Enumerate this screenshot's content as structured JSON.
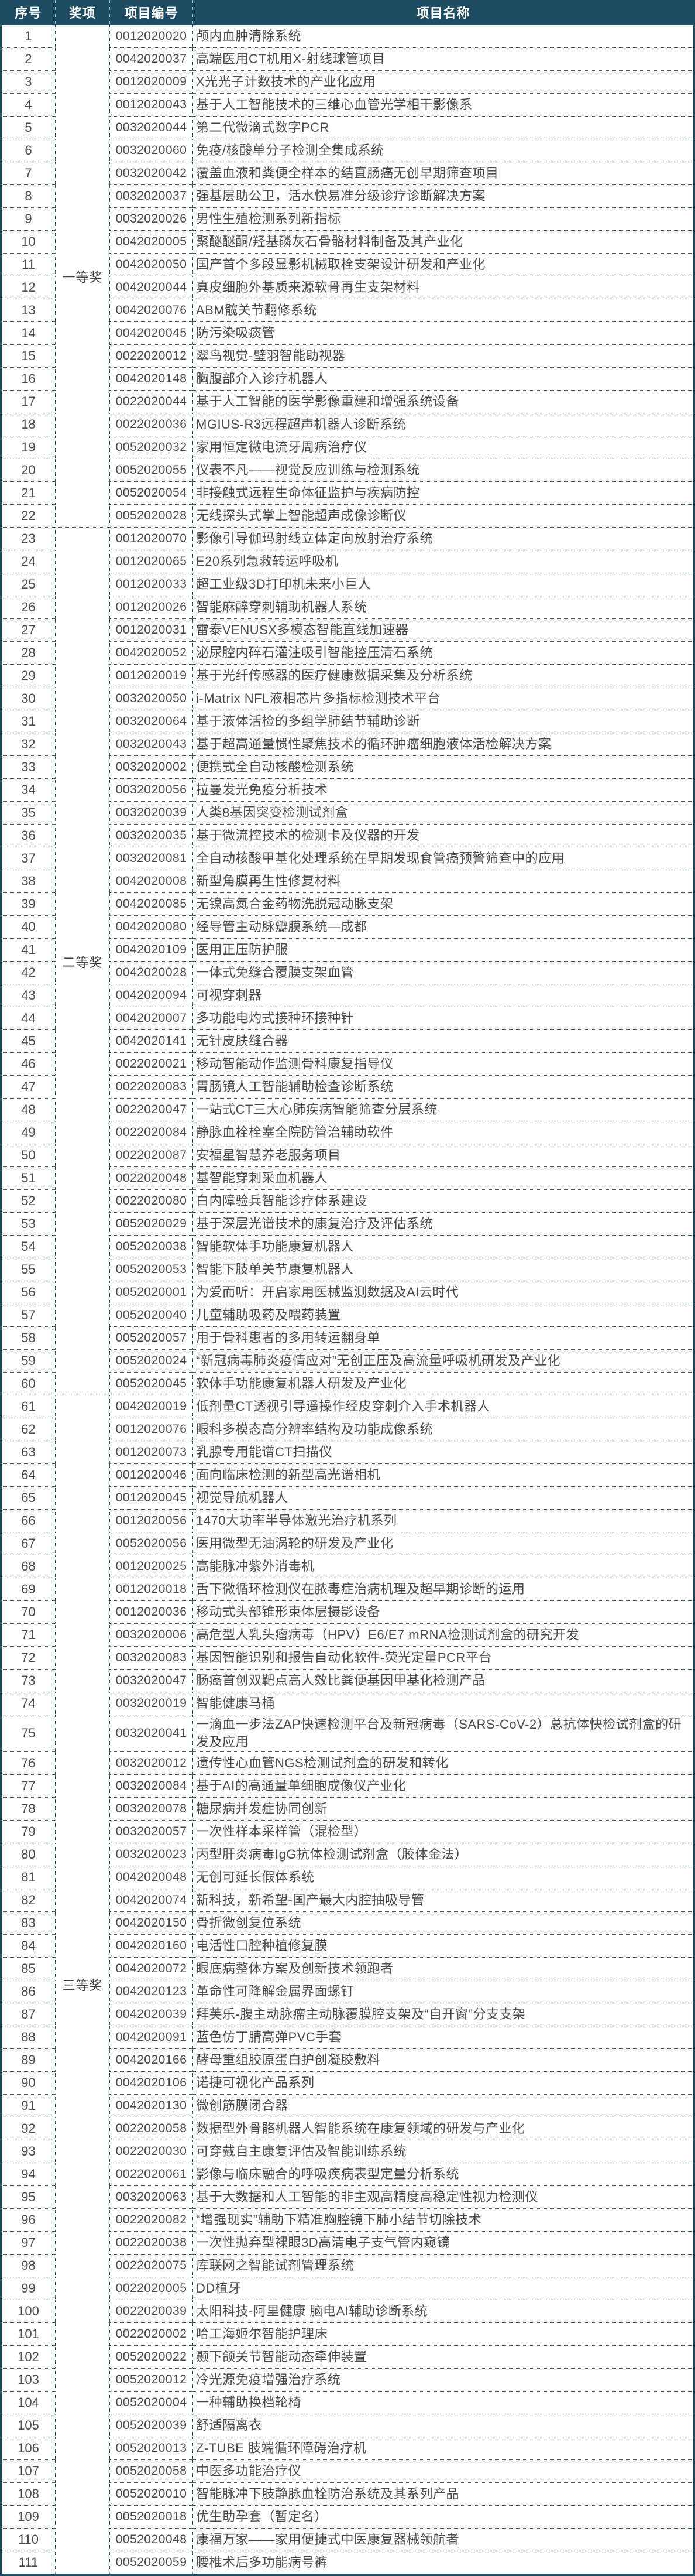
{
  "colors": {
    "header_bg": "#1e4d63",
    "header_text": "#ffffff",
    "grid_dotted": "#2e6486",
    "body_text": "#4a4a4a",
    "outer_border": "#1e4d63"
  },
  "table": {
    "columns": [
      "序号",
      "奖项",
      "项目编号",
      "项目名称"
    ],
    "groups": [
      {
        "award": "一等奖",
        "rows": [
          {
            "no": "1",
            "code": "0012020020",
            "name": "颅内血肿清除系统"
          },
          {
            "no": "2",
            "code": "0042020037",
            "name": "高端医用CT机用X-射线球管项目"
          },
          {
            "no": "3",
            "code": "0012020009",
            "name": "X光光子计数技术的产业化应用"
          },
          {
            "no": "4",
            "code": "0012020043",
            "name": "基于人工智能技术的三维心血管光学相干影像系"
          },
          {
            "no": "5",
            "code": "0032020044",
            "name": "第二代微滴式数字PCR"
          },
          {
            "no": "6",
            "code": "0032020060",
            "name": "免疫/核酸单分子检测全集成系统"
          },
          {
            "no": "7",
            "code": "0032020042",
            "name": "覆盖血液和粪便全样本的结直肠癌无创早期筛查项目"
          },
          {
            "no": "8",
            "code": "0032020037",
            "name": "强基层助公卫，活水快易准分级诊疗诊断解决方案"
          },
          {
            "no": "9",
            "code": "0032020026",
            "name": "男性生殖检测系列新指标"
          },
          {
            "no": "10",
            "code": "0042020005",
            "name": "聚醚醚酮/羟基磷灰石骨骼材料制备及其产业化"
          },
          {
            "no": "11",
            "code": "0042020050",
            "name": "国产首个多段显影机械取栓支架设计研发和产业化"
          },
          {
            "no": "12",
            "code": "0042020044",
            "name": "真皮细胞外基质来源软骨再生支架材料"
          },
          {
            "no": "13",
            "code": "0042020076",
            "name": "ABM髋关节翻修系统"
          },
          {
            "no": "14",
            "code": "0042020045",
            "name": "防污染吸痰管"
          },
          {
            "no": "15",
            "code": "0022020012",
            "name": "翠鸟视觉-璧羽智能助视器"
          },
          {
            "no": "16",
            "code": "0042020148",
            "name": "胸腹部介入诊疗机器人"
          },
          {
            "no": "17",
            "code": "0022020044",
            "name": "基于人工智能的医学影像重建和增强系统设备"
          },
          {
            "no": "18",
            "code": "0022020036",
            "name": "MGIUS-R3远程超声机器人诊断系统"
          },
          {
            "no": "19",
            "code": "0052020032",
            "name": "家用恒定微电流牙周病治疗仪"
          },
          {
            "no": "20",
            "code": "0052020055",
            "name": "仪表不凡——视觉反应训练与检测系统"
          },
          {
            "no": "21",
            "code": "0052020054",
            "name": "非接触式远程生命体征监护与疾病防控"
          },
          {
            "no": "22",
            "code": "0052020028",
            "name": "无线探头式掌上智能超声成像诊断仪"
          }
        ]
      },
      {
        "award": "二等奖",
        "rows": [
          {
            "no": "23",
            "code": "0012020070",
            "name": "影像引导伽玛射线立体定向放射治疗系统"
          },
          {
            "no": "24",
            "code": "0012020065",
            "name": "E20系列急救转运呼吸机"
          },
          {
            "no": "25",
            "code": "0012020033",
            "name": "超工业级3D打印机未来小巨人"
          },
          {
            "no": "26",
            "code": "0012020026",
            "name": "智能麻醉穿刺辅助机器人系统"
          },
          {
            "no": "27",
            "code": "0012020031",
            "name": "雷泰VENUSX多模态智能直线加速器"
          },
          {
            "no": "28",
            "code": "0042020052",
            "name": "泌尿腔内碎石灌注吸引智能控压清石系统"
          },
          {
            "no": "29",
            "code": "0012020019",
            "name": "基于光纤传感器的医疗健康数据采集及分析系统"
          },
          {
            "no": "30",
            "code": "0032020050",
            "name": "i-Matrix NFL液相芯片多指标检测技术平台"
          },
          {
            "no": "31",
            "code": "0032020064",
            "name": "基于液体活检的多组学肺结节辅助诊断"
          },
          {
            "no": "32",
            "code": "0032020043",
            "name": "基于超高通量惯性聚焦技术的循环肿瘤细胞液体活检解决方案"
          },
          {
            "no": "33",
            "code": "0032020002",
            "name": "便携式全自动核酸检测系统"
          },
          {
            "no": "34",
            "code": "0032020056",
            "name": "拉曼发光免疫分析技术"
          },
          {
            "no": "35",
            "code": "0032020039",
            "name": "人类8基因突变检测试剂盒"
          },
          {
            "no": "36",
            "code": "0032020035",
            "name": "基于微流控技术的检测卡及仪器的开发"
          },
          {
            "no": "37",
            "code": "0032020081",
            "name": "全自动核酸甲基化处理系统在早期发现食管癌预警筛查中的应用"
          },
          {
            "no": "38",
            "code": "0042020008",
            "name": "新型角膜再生性修复材料"
          },
          {
            "no": "39",
            "code": "0042020085",
            "name": "无镍高氮合金药物洗脱冠动脉支架"
          },
          {
            "no": "40",
            "code": "0042020080",
            "name": "经导管主动脉瓣膜系统—成都"
          },
          {
            "no": "41",
            "code": "0042020109",
            "name": "医用正压防护服"
          },
          {
            "no": "42",
            "code": "0042020028",
            "name": "一体式免缝合覆膜支架血管"
          },
          {
            "no": "43",
            "code": "0042020094",
            "name": "可视穿刺器"
          },
          {
            "no": "44",
            "code": "0042020007",
            "name": "多功能电灼式接种环接种针"
          },
          {
            "no": "45",
            "code": "0042020141",
            "name": "无针皮肤缝合器"
          },
          {
            "no": "46",
            "code": "0022020021",
            "name": "移动智能动作监测骨科康复指导仪"
          },
          {
            "no": "47",
            "code": "0022020083",
            "name": "胃肠镜人工智能辅助检查诊断系统"
          },
          {
            "no": "48",
            "code": "0022020047",
            "name": "一站式CT三大心肺疾病智能筛查分层系统"
          },
          {
            "no": "49",
            "code": "0022020084",
            "name": "静脉血栓栓塞全院防管治辅助软件"
          },
          {
            "no": "50",
            "code": "0022020087",
            "name": "安福星智慧养老服务项目"
          },
          {
            "no": "51",
            "code": "0022020048",
            "name": "基智能穿刺采血机器人"
          },
          {
            "no": "52",
            "code": "0022020080",
            "name": "白内障验兵智能诊疗体系建设"
          },
          {
            "no": "53",
            "code": "0052020029",
            "name": "基于深层光谱技术的康复治疗及评估系统"
          },
          {
            "no": "54",
            "code": "0052020038",
            "name": "智能软体手功能康复机器人"
          },
          {
            "no": "55",
            "code": "0052020053",
            "name": "智能下肢单关节康复机器人"
          },
          {
            "no": "56",
            "code": "0052020001",
            "name": "为爱而听：开启家用医械监测数据及AI云时代"
          },
          {
            "no": "57",
            "code": "0052020040",
            "name": "儿童辅助吸药及喂药装置"
          },
          {
            "no": "58",
            "code": "0052020057",
            "name": "用于骨科患者的多用转运翻身单"
          },
          {
            "no": "59",
            "code": "0052020024",
            "name": "“新冠病毒肺炎疫情应对”无创正压及高流量呼吸机研发及产业化"
          },
          {
            "no": "60",
            "code": "0052020045",
            "name": "软体手功能康复机器人研发及产业化"
          }
        ]
      },
      {
        "award": "三等奖",
        "rows": [
          {
            "no": "61",
            "code": "0042020019",
            "name": "低剂量CT透视引导遥操作经皮穿刺介入手术机器人"
          },
          {
            "no": "62",
            "code": "0012020076",
            "name": "眼科多模态高分辨率结构及功能成像系统"
          },
          {
            "no": "63",
            "code": "0012020073",
            "name": "乳腺专用能谱CT扫描仪"
          },
          {
            "no": "64",
            "code": "0012020046",
            "name": "面向临床检测的新型高光谱相机"
          },
          {
            "no": "65",
            "code": "0012020045",
            "name": "视觉导航机器人"
          },
          {
            "no": "66",
            "code": "0012020056",
            "name": "1470大功率半导体激光治疗机系列"
          },
          {
            "no": "67",
            "code": "0052020056",
            "name": "医用微型无油涡轮的研发及产业化"
          },
          {
            "no": "68",
            "code": "0012020025",
            "name": "高能脉冲紫外消毒机"
          },
          {
            "no": "69",
            "code": "0012020018",
            "name": "舌下微循环检测仪在脓毒症治病机理及超早期诊断的运用"
          },
          {
            "no": "70",
            "code": "0012020036",
            "name": "移动式头部锥形束体层摄影设备"
          },
          {
            "no": "71",
            "code": "0032020006",
            "name": "高危型人乳头瘤病毒（HPV）E6/E7 mRNA检测试剂盒的研究开发"
          },
          {
            "no": "72",
            "code": "0032020083",
            "name": "基因智能识别和报告自动化软件-荧光定量PCR平台"
          },
          {
            "no": "73",
            "code": "0032020047",
            "name": "肠癌首创双靶点高人效比粪便基因甲基化检测产品"
          },
          {
            "no": "74",
            "code": "0032020019",
            "name": "智能健康马桶"
          },
          {
            "no": "75",
            "code": "0032020041",
            "name": "一滴血一步法ZAP快速检测平台及新冠病毒（SARS-CoV-2）总抗体快检试剂盒的研发及应用"
          },
          {
            "no": "76",
            "code": "0032020012",
            "name": "遗传性心血管NGS检测试剂盒的研发和转化"
          },
          {
            "no": "77",
            "code": "0032020084",
            "name": "基于AI的高通量单细胞成像仪产业化"
          },
          {
            "no": "78",
            "code": "0032020078",
            "name": "糖尿病并发症协同创新"
          },
          {
            "no": "79",
            "code": "0032020057",
            "name": "一次性样本采样管（混检型）"
          },
          {
            "no": "80",
            "code": "0032020023",
            "name": "丙型肝炎病毒IgG抗体检测试剂盒（胶体金法）"
          },
          {
            "no": "81",
            "code": "0042020048",
            "name": "无创可延长假体系统"
          },
          {
            "no": "82",
            "code": "0042020074",
            "name": "新科技，新希望-国产最大内腔抽吸导管"
          },
          {
            "no": "83",
            "code": "0042020150",
            "name": "骨折微创复位系统"
          },
          {
            "no": "84",
            "code": "0042020160",
            "name": "电活性口腔种植修复膜"
          },
          {
            "no": "85",
            "code": "0042020072",
            "name": "眼底病整体方案及创新技术领跑者"
          },
          {
            "no": "86",
            "code": "0042020123",
            "name": "革命性可降解金属界面螺钉"
          },
          {
            "no": "87",
            "code": "0042020039",
            "name": "拜芙乐-腹主动脉瘤主动脉覆膜腔支架及“自开窗”分支支架"
          },
          {
            "no": "88",
            "code": "0042020091",
            "name": "蓝色仿丁腈高弹PVC手套"
          },
          {
            "no": "89",
            "code": "0042020166",
            "name": "酵母重组胶原蛋白护创凝胶敷料"
          },
          {
            "no": "90",
            "code": "0042020106",
            "name": "诺捷可视化产品系列"
          },
          {
            "no": "91",
            "code": "0042020130",
            "name": "微创筋膜闭合器"
          },
          {
            "no": "92",
            "code": "0022020058",
            "name": "数据型外骨骼机器人智能系统在康复领域的研发与产业化"
          },
          {
            "no": "93",
            "code": "0022020030",
            "name": "可穿戴自主康复评估及智能训练系统"
          },
          {
            "no": "94",
            "code": "0022020061",
            "name": "影像与临床融合的呼吸疾病表型定量分析系统"
          },
          {
            "no": "95",
            "code": "0032020063",
            "name": "基于大数据和人工智能的非主观高精度高稳定性视力检测仪"
          },
          {
            "no": "96",
            "code": "0022020082",
            "name": "“增强现实”辅助下精准胸腔镜下肺小结节切除技术"
          },
          {
            "no": "97",
            "code": "0022020038",
            "name": "一次性抛弃型裸眼3D高清电子支气管内窥镜"
          },
          {
            "no": "98",
            "code": "0022020075",
            "name": "库联网之智能试剂管理系统"
          },
          {
            "no": "99",
            "code": "0022020005",
            "name": "DD植牙"
          },
          {
            "no": "100",
            "code": "0022020039",
            "name": "太阳科技-阿里健康 脑电AI辅助诊断系统"
          },
          {
            "no": "101",
            "code": "0022020002",
            "name": "哈工海姬尔智能护理床"
          },
          {
            "no": "102",
            "code": "0052020022",
            "name": "颞下颌关节智能动态牵伸装置"
          },
          {
            "no": "103",
            "code": "0052020012",
            "name": "冷光源免疫增强治疗系统"
          },
          {
            "no": "104",
            "code": "0052020004",
            "name": "一种辅助换档轮椅"
          },
          {
            "no": "105",
            "code": "0052020039",
            "name": "舒适隔离衣"
          },
          {
            "no": "106",
            "code": "0052020013",
            "name": "Z-TUBE 肢端循环障碍治疗机"
          },
          {
            "no": "107",
            "code": "0052020058",
            "name": "中医多功能治疗仪"
          },
          {
            "no": "108",
            "code": "0052020010",
            "name": "智能脉冲下肢静脉血栓防治系统及其系列产品"
          },
          {
            "no": "109",
            "code": "0052020018",
            "name": "优生助孕套（暂定名）"
          },
          {
            "no": "110",
            "code": "0052020048",
            "name": "康福万家——家用便捷式中医康复器械领航者"
          },
          {
            "no": "111",
            "code": "0052020059",
            "name": "腰椎术后多功能病号裤"
          }
        ]
      }
    ]
  }
}
